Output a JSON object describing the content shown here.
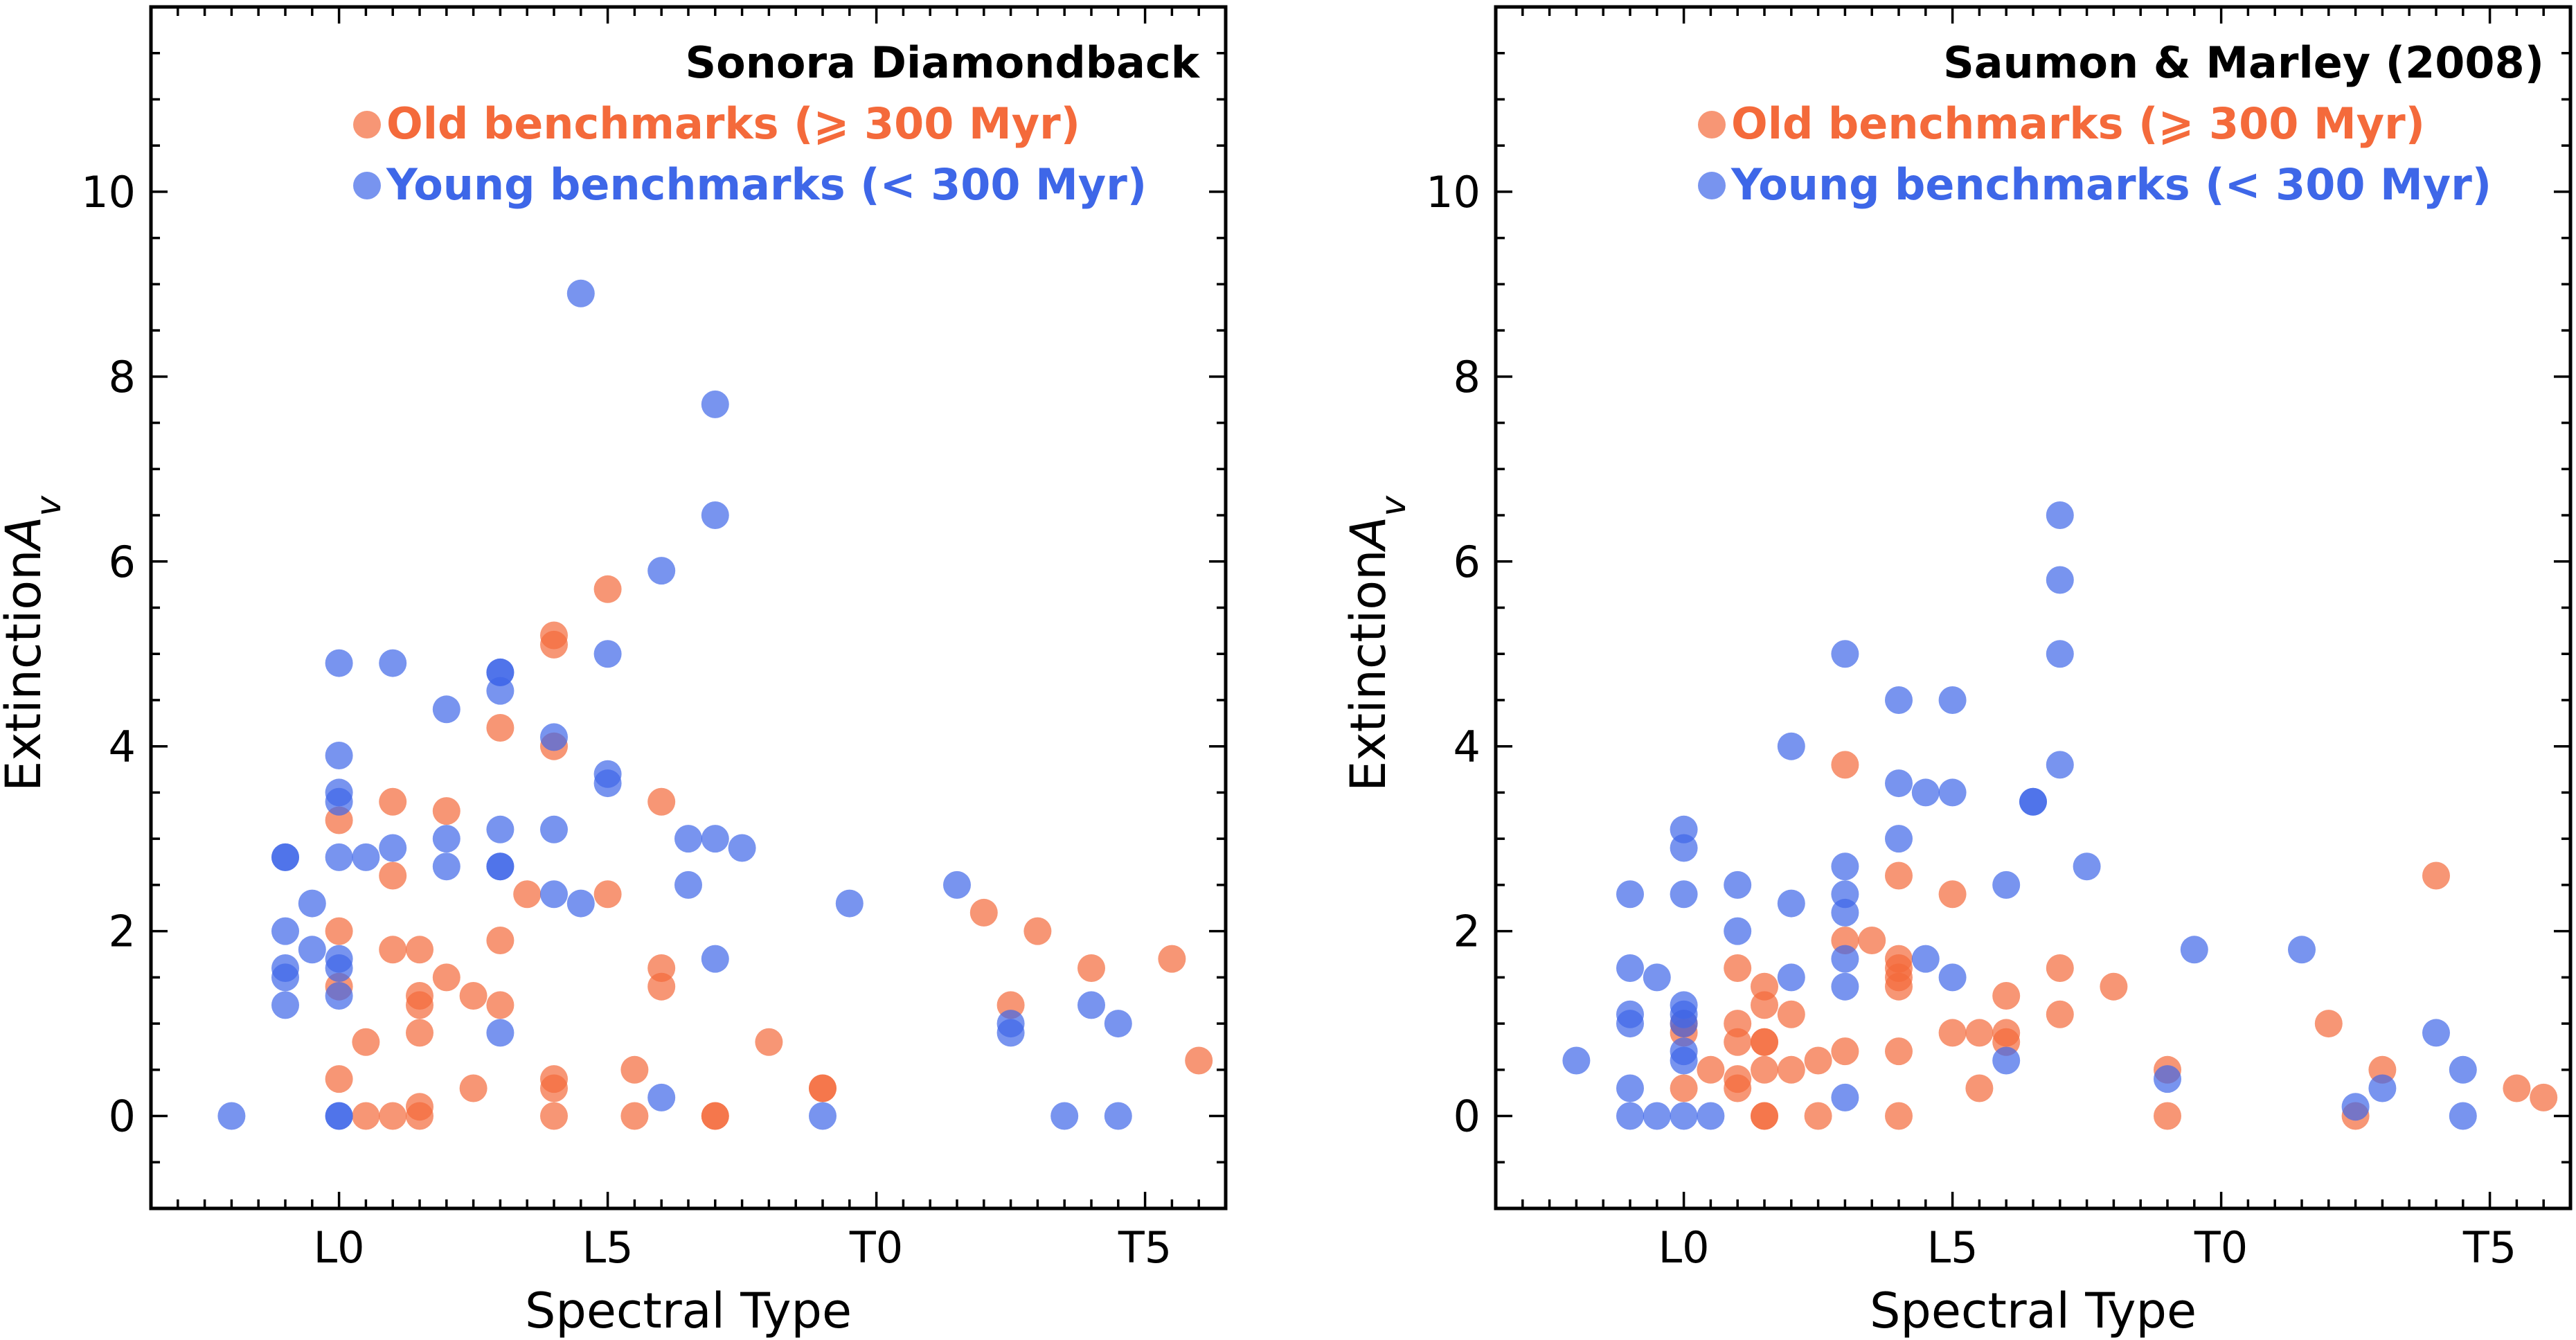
{
  "colors": {
    "old": "#f46a3b",
    "young": "#3e67e8",
    "axis": "#000000"
  },
  "chart_data": [
    {
      "type": "scatter",
      "title": "Sonora Diamondback",
      "xlabel": "Spectral Type",
      "ylabel": "Extinction",
      "ylabel_sub": "v",
      "ylabel_italic": "A",
      "xlim": [
        -7,
        33
      ],
      "ylim": [
        -1,
        12
      ],
      "xticks": [
        {
          "v": 0,
          "label": "L0"
        },
        {
          "v": 10,
          "label": "L5"
        },
        {
          "v": 20,
          "label": "T0"
        },
        {
          "v": 30,
          "label": "T5"
        }
      ],
      "yticks": [
        {
          "v": 0,
          "label": "0"
        },
        {
          "v": 2,
          "label": "2"
        },
        {
          "v": 4,
          "label": "4"
        },
        {
          "v": 6,
          "label": "6"
        },
        {
          "v": 8,
          "label": "8"
        },
        {
          "v": 10,
          "label": "10"
        }
      ],
      "legend": {
        "position": "top-right"
      },
      "series": [
        {
          "name": "Old benchmarks (⩾ 300 Myr)",
          "color_key": "old",
          "points": [
            [
              0,
              3.2
            ],
            [
              0,
              2
            ],
            [
              0,
              1.4
            ],
            [
              0,
              0.4
            ],
            [
              1,
              0.8
            ],
            [
              1,
              0
            ],
            [
              2,
              3.4
            ],
            [
              2,
              2.6
            ],
            [
              2,
              1.8
            ],
            [
              2,
              0
            ],
            [
              3,
              1.8
            ],
            [
              3,
              1.3
            ],
            [
              3,
              1.2
            ],
            [
              3,
              0.9
            ],
            [
              3,
              0.1
            ],
            [
              3,
              0
            ],
            [
              4,
              3.3
            ],
            [
              4,
              1.5
            ],
            [
              5,
              1.3
            ],
            [
              5,
              0.3
            ],
            [
              6,
              4.2
            ],
            [
              6,
              1.9
            ],
            [
              6,
              1.2
            ],
            [
              7,
              2.4
            ],
            [
              8,
              5.2
            ],
            [
              8,
              5.1
            ],
            [
              8,
              4
            ],
            [
              8,
              0.4
            ],
            [
              8,
              0.3
            ],
            [
              8,
              0
            ],
            [
              10,
              5.7
            ],
            [
              10,
              2.4
            ],
            [
              11,
              0.5
            ],
            [
              11,
              0
            ],
            [
              12,
              3.4
            ],
            [
              12,
              1.6
            ],
            [
              12,
              1.4
            ],
            [
              14,
              0
            ],
            [
              14,
              0
            ],
            [
              16,
              0.8
            ],
            [
              18,
              0.3
            ],
            [
              18,
              0.3
            ],
            [
              24,
              2.2
            ],
            [
              25,
              1.2
            ],
            [
              26,
              2
            ],
            [
              28,
              1.6
            ],
            [
              31,
              1.7
            ],
            [
              32,
              0.6
            ]
          ]
        },
        {
          "name": "Young benchmarks (< 300 Myr)",
          "color_key": "young",
          "points": [
            [
              -4,
              0
            ],
            [
              -2,
              2.8
            ],
            [
              -2,
              2.8
            ],
            [
              -2,
              2
            ],
            [
              -2,
              1.6
            ],
            [
              -2,
              1.5
            ],
            [
              -2,
              1.2
            ],
            [
              -1,
              2.3
            ],
            [
              -1,
              1.8
            ],
            [
              0,
              4.9
            ],
            [
              0,
              3.9
            ],
            [
              0,
              3.5
            ],
            [
              0,
              3.4
            ],
            [
              0,
              2.8
            ],
            [
              0,
              1.7
            ],
            [
              0,
              1.6
            ],
            [
              0,
              1.3
            ],
            [
              0,
              0
            ],
            [
              0,
              0
            ],
            [
              1,
              2.8
            ],
            [
              2,
              4.9
            ],
            [
              2,
              2.9
            ],
            [
              4,
              4.4
            ],
            [
              4,
              3
            ],
            [
              4,
              2.7
            ],
            [
              6,
              4.8
            ],
            [
              6,
              4.8
            ],
            [
              6,
              4.6
            ],
            [
              6,
              3.1
            ],
            [
              6,
              2.7
            ],
            [
              6,
              2.7
            ],
            [
              6,
              0.9
            ],
            [
              8,
              4.1
            ],
            [
              8,
              3.1
            ],
            [
              8,
              2.4
            ],
            [
              9,
              8.9
            ],
            [
              9,
              2.3
            ],
            [
              10,
              5
            ],
            [
              10,
              3.7
            ],
            [
              10,
              3.6
            ],
            [
              12,
              5.9
            ],
            [
              12,
              0.2
            ],
            [
              13,
              3
            ],
            [
              13,
              2.5
            ],
            [
              14,
              7.7
            ],
            [
              14,
              6.5
            ],
            [
              14,
              3
            ],
            [
              14,
              1.7
            ],
            [
              15,
              2.9
            ],
            [
              18,
              0
            ],
            [
              19,
              2.3
            ],
            [
              23,
              2.5
            ],
            [
              25,
              1
            ],
            [
              25,
              0.9
            ],
            [
              27,
              0
            ],
            [
              28,
              1.2
            ],
            [
              29,
              1
            ],
            [
              29,
              0
            ]
          ]
        }
      ]
    },
    {
      "type": "scatter",
      "title": "Saumon & Marley (2008)",
      "xlabel": "Spectral Type",
      "ylabel": "Extinction",
      "ylabel_sub": "v",
      "ylabel_italic": "A",
      "xlim": [
        -7,
        33
      ],
      "ylim": [
        -1,
        12
      ],
      "xticks": [
        {
          "v": 0,
          "label": "L0"
        },
        {
          "v": 10,
          "label": "L5"
        },
        {
          "v": 20,
          "label": "T0"
        },
        {
          "v": 30,
          "label": "T5"
        }
      ],
      "yticks": [
        {
          "v": 0,
          "label": "0"
        },
        {
          "v": 2,
          "label": "2"
        },
        {
          "v": 4,
          "label": "4"
        },
        {
          "v": 6,
          "label": "6"
        },
        {
          "v": 8,
          "label": "8"
        },
        {
          "v": 10,
          "label": "10"
        }
      ],
      "legend": {
        "position": "top-right"
      },
      "series": [
        {
          "name": "Old benchmarks (⩾ 300 Myr)",
          "color_key": "old",
          "points": [
            [
              0,
              1
            ],
            [
              0,
              0.9
            ],
            [
              0,
              0.3
            ],
            [
              1,
              0.5
            ],
            [
              2,
              1.6
            ],
            [
              2,
              1
            ],
            [
              2,
              0.8
            ],
            [
              2,
              0.4
            ],
            [
              2,
              0.3
            ],
            [
              3,
              1.4
            ],
            [
              3,
              1.2
            ],
            [
              3,
              0.8
            ],
            [
              3,
              0.8
            ],
            [
              3,
              0.5
            ],
            [
              3,
              0
            ],
            [
              3,
              0
            ],
            [
              4,
              1.1
            ],
            [
              4,
              0.5
            ],
            [
              5,
              0.6
            ],
            [
              5,
              0
            ],
            [
              6,
              3.8
            ],
            [
              6,
              1.9
            ],
            [
              6,
              0.7
            ],
            [
              7,
              1.9
            ],
            [
              8,
              2.6
            ],
            [
              8,
              1.7
            ],
            [
              8,
              1.6
            ],
            [
              8,
              1.5
            ],
            [
              8,
              1.4
            ],
            [
              8,
              0.7
            ],
            [
              8,
              0
            ],
            [
              10,
              2.4
            ],
            [
              10,
              0.9
            ],
            [
              11,
              0.9
            ],
            [
              11,
              0.3
            ],
            [
              12,
              1.3
            ],
            [
              12,
              0.9
            ],
            [
              12,
              0.8
            ],
            [
              14,
              1.6
            ],
            [
              14,
              1.1
            ],
            [
              16,
              1.4
            ],
            [
              18,
              0.5
            ],
            [
              18,
              0
            ],
            [
              24,
              1
            ],
            [
              25,
              0
            ],
            [
              26,
              0.5
            ],
            [
              28,
              2.6
            ],
            [
              31,
              0.3
            ],
            [
              32,
              0.2
            ]
          ]
        },
        {
          "name": "Young benchmarks (< 300 Myr)",
          "color_key": "young",
          "points": [
            [
              -4,
              0.6
            ],
            [
              -2,
              2.4
            ],
            [
              -2,
              1.6
            ],
            [
              -2,
              1.1
            ],
            [
              -2,
              1
            ],
            [
              -2,
              0.3
            ],
            [
              -2,
              0
            ],
            [
              -1,
              1.5
            ],
            [
              -1,
              0
            ],
            [
              0,
              3.1
            ],
            [
              0,
              2.9
            ],
            [
              0,
              2.4
            ],
            [
              0,
              1.2
            ],
            [
              0,
              1.1
            ],
            [
              0,
              1
            ],
            [
              0,
              0.7
            ],
            [
              0,
              0.6
            ],
            [
              0,
              0
            ],
            [
              1,
              0
            ],
            [
              2,
              2.5
            ],
            [
              2,
              2
            ],
            [
              4,
              4
            ],
            [
              4,
              2.3
            ],
            [
              4,
              1.5
            ],
            [
              6,
              5
            ],
            [
              6,
              2.7
            ],
            [
              6,
              2.4
            ],
            [
              6,
              2.2
            ],
            [
              6,
              1.7
            ],
            [
              6,
              1.4
            ],
            [
              6,
              0.2
            ],
            [
              8,
              4.5
            ],
            [
              8,
              3.6
            ],
            [
              8,
              3
            ],
            [
              9,
              3.5
            ],
            [
              9,
              1.7
            ],
            [
              10,
              4.5
            ],
            [
              10,
              3.5
            ],
            [
              10,
              1.5
            ],
            [
              12,
              2.5
            ],
            [
              12,
              0.6
            ],
            [
              13,
              3.4
            ],
            [
              13,
              3.4
            ],
            [
              14,
              6.5
            ],
            [
              14,
              5.8
            ],
            [
              14,
              5
            ],
            [
              14,
              3.8
            ],
            [
              15,
              2.7
            ],
            [
              18,
              0.4
            ],
            [
              19,
              1.8
            ],
            [
              23,
              1.8
            ],
            [
              25,
              0.1
            ],
            [
              26,
              0.3
            ],
            [
              28,
              0.9
            ],
            [
              29,
              0.5
            ],
            [
              29,
              0
            ]
          ]
        }
      ]
    }
  ]
}
